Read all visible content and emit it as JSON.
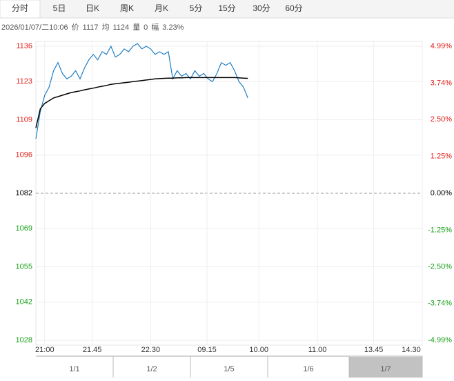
{
  "tabs": [
    "分时",
    "5日",
    "日K",
    "周K",
    "月K",
    "5分",
    "15分",
    "30分",
    "60分"
  ],
  "active_tab": 0,
  "info": [
    "2026/01/07/二10:06",
    "价",
    "1117",
    "均",
    "1124",
    "量",
    "0",
    "幅",
    "3.23%"
  ],
  "navigator": {
    "labels": [
      "1/1",
      "1/2",
      "1/5",
      "1/6",
      "1/7"
    ]
  },
  "chart_data": {
    "type": "line",
    "x": [
      0,
      4,
      8,
      12,
      16,
      20,
      24,
      28,
      32,
      36,
      40,
      44,
      48,
      52,
      56,
      60,
      64,
      68,
      72,
      76,
      80,
      84,
      88,
      92,
      96,
      100,
      104,
      108,
      112,
      116,
      120,
      124,
      128,
      132,
      136,
      140,
      144,
      148,
      152,
      156,
      160,
      164,
      168,
      172,
      176,
      180,
      184,
      188,
      192
    ],
    "series": [
      {
        "color": "#1f7fc4",
        "values": [
          1102,
          1112,
          1118,
          1121,
          1127,
          1130,
          1126,
          1124,
          1125,
          1127,
          1124,
          1128,
          1131,
          1133,
          1131,
          1134,
          1133,
          1136,
          1132,
          1133,
          1135,
          1134,
          1136,
          1137,
          1135,
          1136,
          1135,
          1133,
          1134,
          1133,
          1134,
          1124,
          1127,
          1125,
          1126,
          1124,
          1127,
          1125,
          1126,
          1124,
          1123,
          1126,
          1130,
          1129,
          1130,
          1127,
          1123,
          1121,
          1117
        ]
      },
      {
        "color": "#000000",
        "values": [
          1106,
          1113,
          1115,
          1116,
          1117,
          1117.5,
          1118,
          1118.5,
          1119,
          1119.3,
          1119.6,
          1120,
          1120.3,
          1120.6,
          1121,
          1121.3,
          1121.6,
          1122,
          1122.2,
          1122.4,
          1122.6,
          1122.8,
          1123,
          1123.2,
          1123.4,
          1123.6,
          1123.8,
          1124,
          1124.1,
          1124.2,
          1124.3,
          1124.3,
          1124.4,
          1124.4,
          1124.5,
          1124.5,
          1124.5,
          1124.5,
          1124.5,
          1124.5,
          1124.5,
          1124.5,
          1124.5,
          1124.5,
          1124.5,
          1124.5,
          1124.4,
          1124.3,
          1124.2
        ]
      }
    ],
    "xlim": [
      0,
      350
    ],
    "xticks": [
      {
        "value": 8,
        "label": "21:00"
      },
      {
        "value": 51,
        "label": "21.45"
      },
      {
        "value": 104,
        "label": "22.30"
      },
      {
        "value": 155,
        "label": "09.15"
      },
      {
        "value": 202,
        "label": "10.00"
      },
      {
        "value": 255,
        "label": "11.00"
      },
      {
        "value": 306,
        "label": "13.45"
      },
      {
        "value": 350,
        "label": "14.30"
      }
    ],
    "ylim": [
      1028,
      1136
    ],
    "yticks": [
      1136,
      1123,
      1109,
      1096,
      1082,
      1069,
      1055,
      1042,
      1028
    ],
    "y2lim": [
      -4.99,
      4.99
    ],
    "y2ticks": [
      {
        "value": 4.99,
        "label": "4.99%"
      },
      {
        "value": 3.74,
        "label": "3.74%"
      },
      {
        "value": 2.5,
        "label": "2.50%"
      },
      {
        "value": 1.25,
        "label": "1.25%"
      },
      {
        "value": 0,
        "label": "0.00%"
      },
      {
        "value": -1.25,
        "label": "-1.25%"
      },
      {
        "value": -2.5,
        "label": "-2.50%"
      },
      {
        "value": -3.74,
        "label": "-3.74%"
      },
      {
        "value": -4.99,
        "label": "-4.99%"
      }
    ],
    "grid": true,
    "up_color": "#e0201c",
    "down_color": "#19a019",
    "flat_color": "#000000"
  }
}
